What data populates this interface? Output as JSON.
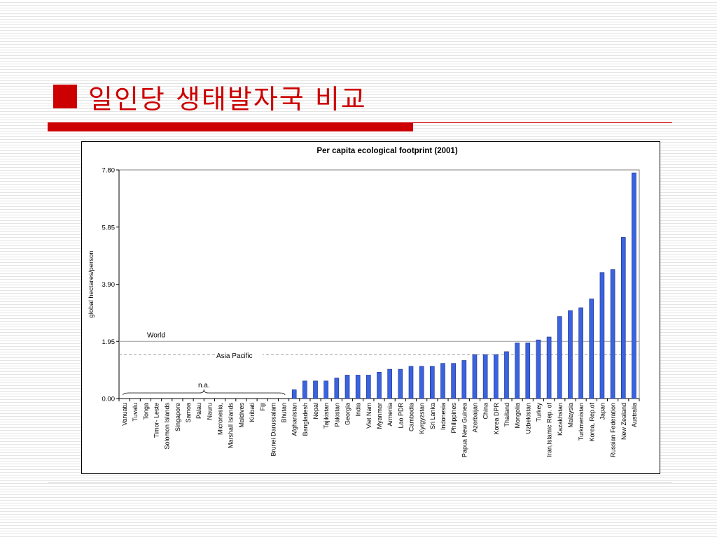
{
  "slide": {
    "title": "일인당 생태발자국 비교",
    "accent_color": "#cc0000"
  },
  "chart_data": {
    "type": "bar",
    "title": "Per capita ecological footprint (2001)",
    "ylabel": "global hectares/person",
    "xlabel": "",
    "ylim": [
      0,
      7.8
    ],
    "yticks": [
      "0.00",
      "1.95",
      "3.90",
      "5.85",
      "7.80"
    ],
    "bar_color": "#3a63e0",
    "categories": [
      "Vanuatu",
      "Tuvalu",
      "Tonga",
      "Timor- Leste",
      "Solomon Islands",
      "Singapore",
      "Samoa",
      "Palau",
      "Nauru",
      "Micronesia,",
      "Marshall Islands",
      "Maldives",
      "Kiribati",
      "Fiji",
      "Brunei Darussalam",
      "Bhutan",
      "Afghanistan",
      "Bangladesh",
      "Nepal",
      "Tajikistan",
      "Pakistan",
      "Georgia",
      "India",
      "Viet Nam",
      "Myanmar",
      "Armenia",
      "Lao PDR",
      "Cambodia",
      "Kyrgyzstan",
      "Sri Lanka",
      "Indonesia",
      "Philippines",
      "Papua New Guinea",
      "Azerbaijan",
      "China",
      "Korea DPR",
      "Thailand",
      "Mongolia",
      "Uzbekistan",
      "Turkey",
      "Iran,Islamic Rep. of",
      "Kazakhstan",
      "Malaysia",
      "Turkmenistan",
      "Korea, Rep.of",
      "Japan",
      "Russian Federation",
      "New Zealand",
      "Australia"
    ],
    "values": [
      null,
      null,
      null,
      null,
      null,
      null,
      null,
      null,
      null,
      null,
      null,
      null,
      null,
      null,
      null,
      null,
      0.3,
      0.6,
      0.6,
      0.6,
      0.7,
      0.8,
      0.8,
      0.8,
      0.9,
      1.0,
      1.0,
      1.1,
      1.1,
      1.1,
      1.2,
      1.2,
      1.3,
      1.5,
      1.5,
      1.5,
      1.6,
      1.9,
      1.9,
      2.0,
      2.1,
      2.8,
      3.0,
      3.1,
      3.4,
      4.3,
      4.4,
      5.5,
      7.7
    ],
    "reference_lines": [
      {
        "name": "World",
        "value": 1.95,
        "style": "solid"
      },
      {
        "name": "Asia Pacific",
        "value": 1.5,
        "style": "dashed"
      }
    ],
    "na_label": "n.a.",
    "grid": false,
    "legend": "none"
  }
}
